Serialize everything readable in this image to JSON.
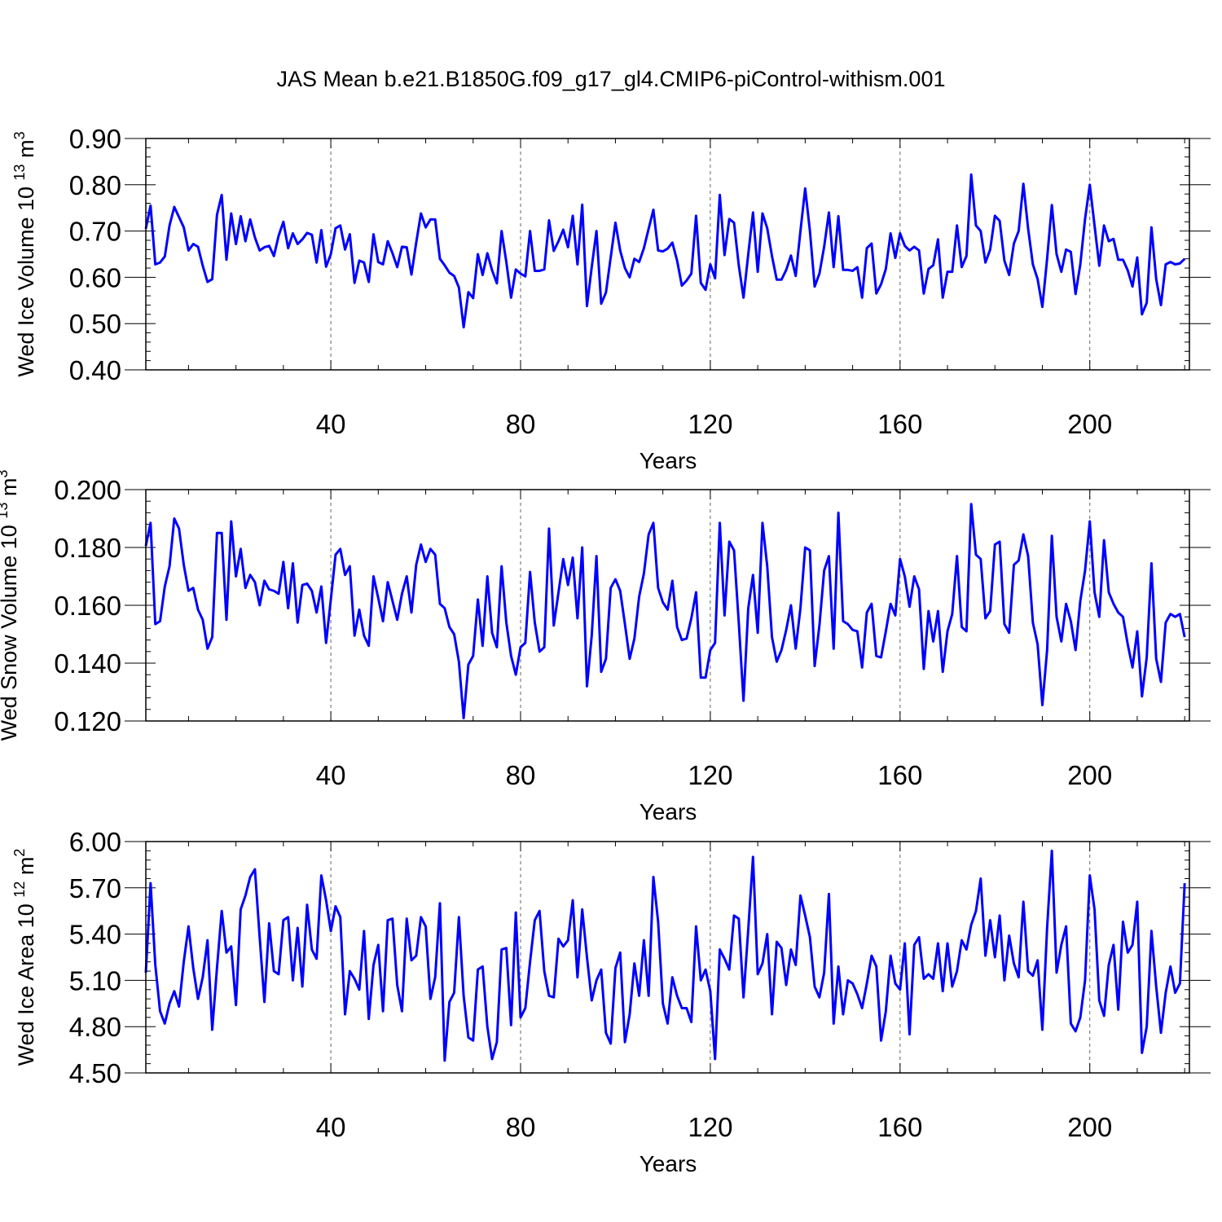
{
  "figure_title": "JAS Mean b.e21.B1850G.f09_g17_gl4.CMIP6-piControl-withism.001",
  "chart_data": [
    {
      "type": "line",
      "ylabel": "Wed Ice Volume 10",
      "ylabel_exp": "13",
      "ylabel_unit": "m",
      "ylabel_unit_exp": "3",
      "xlabel": "Years",
      "xlim": [
        1,
        221
      ],
      "ylim": [
        0.4,
        0.9
      ],
      "yticks": [
        0.4,
        0.5,
        0.6,
        0.7,
        0.8,
        0.9
      ],
      "ytick_labels": [
        "0.40",
        "0.50",
        "0.60",
        "0.70",
        "0.80",
        "0.90"
      ],
      "xticks": [
        40,
        80,
        120,
        160,
        200
      ],
      "xtick_labels": [
        "40",
        "80",
        "120",
        "160",
        "200"
      ],
      "grid": "dashed vertical at major x ticks",
      "line_color": "#0000ff",
      "x_start": 1,
      "values": [
        0.705,
        0.755,
        0.628,
        0.632,
        0.645,
        0.712,
        0.752,
        0.73,
        0.708,
        0.658,
        0.672,
        0.666,
        0.625,
        0.59,
        0.596,
        0.735,
        0.778,
        0.638,
        0.738,
        0.672,
        0.732,
        0.678,
        0.725,
        0.686,
        0.658,
        0.665,
        0.668,
        0.646,
        0.69,
        0.72,
        0.663,
        0.695,
        0.672,
        0.682,
        0.696,
        0.692,
        0.632,
        0.702,
        0.623,
        0.65,
        0.706,
        0.712,
        0.66,
        0.693,
        0.588,
        0.636,
        0.632,
        0.59,
        0.693,
        0.633,
        0.628,
        0.678,
        0.652,
        0.622,
        0.666,
        0.665,
        0.606,
        0.675,
        0.738,
        0.708,
        0.725,
        0.725,
        0.64,
        0.626,
        0.61,
        0.603,
        0.578,
        0.492,
        0.568,
        0.555,
        0.65,
        0.605,
        0.652,
        0.615,
        0.587,
        0.7,
        0.633,
        0.556,
        0.617,
        0.608,
        0.602,
        0.7,
        0.614,
        0.614,
        0.617,
        0.723,
        0.657,
        0.678,
        0.703,
        0.665,
        0.733,
        0.628,
        0.757,
        0.538,
        0.622,
        0.7,
        0.543,
        0.567,
        0.643,
        0.718,
        0.658,
        0.62,
        0.6,
        0.64,
        0.633,
        0.663,
        0.705,
        0.746,
        0.658,
        0.656,
        0.662,
        0.675,
        0.636,
        0.582,
        0.593,
        0.608,
        0.733,
        0.588,
        0.573,
        0.628,
        0.598,
        0.778,
        0.648,
        0.726,
        0.718,
        0.626,
        0.556,
        0.65,
        0.74,
        0.612,
        0.738,
        0.706,
        0.646,
        0.595,
        0.595,
        0.616,
        0.647,
        0.603,
        0.7,
        0.792,
        0.7,
        0.58,
        0.608,
        0.666,
        0.74,
        0.622,
        0.732,
        0.616,
        0.616,
        0.614,
        0.622,
        0.556,
        0.663,
        0.673,
        0.565,
        0.585,
        0.618,
        0.695,
        0.642,
        0.695,
        0.668,
        0.658,
        0.666,
        0.658,
        0.565,
        0.618,
        0.626,
        0.682,
        0.556,
        0.612,
        0.612,
        0.712,
        0.622,
        0.646,
        0.822,
        0.712,
        0.7,
        0.632,
        0.66,
        0.733,
        0.722,
        0.636,
        0.605,
        0.673,
        0.7,
        0.802,
        0.705,
        0.628,
        0.596,
        0.536,
        0.64,
        0.756,
        0.65,
        0.612,
        0.66,
        0.655,
        0.564,
        0.628,
        0.726,
        0.8,
        0.712,
        0.625,
        0.712,
        0.678,
        0.683,
        0.638,
        0.638,
        0.615,
        0.58,
        0.643,
        0.52,
        0.545,
        0.708,
        0.596,
        0.54,
        0.628,
        0.633,
        0.628,
        0.63,
        0.64
      ]
    },
    {
      "type": "line",
      "ylabel": "Wed Snow Volume 10",
      "ylabel_exp": "13",
      "ylabel_unit": "m",
      "ylabel_unit_exp": "3",
      "xlabel": "Years",
      "xlim": [
        1,
        221
      ],
      "ylim": [
        0.12,
        0.2
      ],
      "yticks": [
        0.12,
        0.14,
        0.16,
        0.18,
        0.2
      ],
      "ytick_labels": [
        "0.120",
        "0.140",
        "0.160",
        "0.180",
        "0.200"
      ],
      "xticks": [
        40,
        80,
        120,
        160,
        200
      ],
      "xtick_labels": [
        "40",
        "80",
        "120",
        "160",
        "200"
      ],
      "grid": "dashed vertical at major x ticks",
      "line_color": "#0000ff",
      "x_start": 1,
      "values": [
        0.1805,
        0.1885,
        0.1535,
        0.1545,
        0.1665,
        0.1735,
        0.19,
        0.1865,
        0.174,
        0.165,
        0.166,
        0.1585,
        0.155,
        0.145,
        0.149,
        0.185,
        0.185,
        0.155,
        0.189,
        0.17,
        0.1795,
        0.166,
        0.1705,
        0.168,
        0.16,
        0.1685,
        0.1655,
        0.165,
        0.164,
        0.175,
        0.159,
        0.1745,
        0.154,
        0.167,
        0.1675,
        0.165,
        0.1575,
        0.1665,
        0.147,
        0.162,
        0.1775,
        0.1795,
        0.1705,
        0.1735,
        0.1495,
        0.1585,
        0.1495,
        0.146,
        0.17,
        0.1625,
        0.1545,
        0.168,
        0.1615,
        0.155,
        0.164,
        0.17,
        0.1575,
        0.174,
        0.181,
        0.175,
        0.1795,
        0.1775,
        0.1605,
        0.159,
        0.1525,
        0.15,
        0.1405,
        0.121,
        0.1395,
        0.1425,
        0.162,
        0.146,
        0.17,
        0.1505,
        0.1455,
        0.1735,
        0.154,
        0.1425,
        0.136,
        0.1455,
        0.147,
        0.1715,
        0.154,
        0.144,
        0.1455,
        0.1865,
        0.153,
        0.1645,
        0.176,
        0.167,
        0.1765,
        0.1555,
        0.18,
        0.132,
        0.1495,
        0.177,
        0.137,
        0.1415,
        0.166,
        0.169,
        0.165,
        0.1535,
        0.1415,
        0.1485,
        0.163,
        0.171,
        0.1845,
        0.1885,
        0.166,
        0.161,
        0.1585,
        0.1685,
        0.1525,
        0.148,
        0.1485,
        0.1555,
        0.1645,
        0.135,
        0.135,
        0.1445,
        0.147,
        0.1885,
        0.1565,
        0.182,
        0.179,
        0.154,
        0.127,
        0.159,
        0.1705,
        0.1505,
        0.1885,
        0.1735,
        0.149,
        0.1405,
        0.1445,
        0.1515,
        0.16,
        0.145,
        0.159,
        0.18,
        0.179,
        0.139,
        0.153,
        0.172,
        0.177,
        0.145,
        0.192,
        0.1545,
        0.1535,
        0.1515,
        0.151,
        0.1385,
        0.1575,
        0.1605,
        0.1425,
        0.142,
        0.151,
        0.1605,
        0.1565,
        0.176,
        0.17,
        0.1595,
        0.17,
        0.1655,
        0.138,
        0.158,
        0.1475,
        0.158,
        0.137,
        0.151,
        0.157,
        0.177,
        0.1525,
        0.151,
        0.195,
        0.1775,
        0.176,
        0.1555,
        0.158,
        0.181,
        0.182,
        0.1535,
        0.1505,
        0.174,
        0.1755,
        0.1845,
        0.177,
        0.154,
        0.1465,
        0.1255,
        0.1445,
        0.184,
        0.156,
        0.1475,
        0.1605,
        0.1545,
        0.1445,
        0.1615,
        0.172,
        0.189,
        0.1645,
        0.156,
        0.1825,
        0.1645,
        0.1605,
        0.1575,
        0.156,
        0.1465,
        0.1385,
        0.151,
        0.1285,
        0.142,
        0.1745,
        0.1415,
        0.1335,
        0.154,
        0.157,
        0.156,
        0.157,
        0.149
      ]
    },
    {
      "type": "line",
      "ylabel": "Wed Ice Area 10",
      "ylabel_exp": "12",
      "ylabel_unit": "m",
      "ylabel_unit_exp": "2",
      "xlabel": "Years",
      "xlim": [
        1,
        221
      ],
      "ylim": [
        4.5,
        6.0
      ],
      "yticks": [
        4.5,
        4.8,
        5.1,
        5.4,
        5.7,
        6.0
      ],
      "ytick_labels": [
        "4.50",
        "4.80",
        "5.10",
        "5.40",
        "5.70",
        "6.00"
      ],
      "xticks": [
        40,
        80,
        120,
        160,
        200
      ],
      "xtick_labels": [
        "40",
        "80",
        "120",
        "160",
        "200"
      ],
      "grid": "dashed vertical at major x ticks",
      "line_color": "#0000ff",
      "x_start": 1,
      "values": [
        5.15,
        5.73,
        5.2,
        4.9,
        4.82,
        4.95,
        5.03,
        4.93,
        5.22,
        5.45,
        5.18,
        4.98,
        5.12,
        5.36,
        4.78,
        5.18,
        5.55,
        5.28,
        5.32,
        4.94,
        5.56,
        5.65,
        5.77,
        5.82,
        5.38,
        4.96,
        5.47,
        5.16,
        5.14,
        5.49,
        5.51,
        5.1,
        5.44,
        5.06,
        5.59,
        5.3,
        5.24,
        5.78,
        5.62,
        5.42,
        5.58,
        5.51,
        4.88,
        5.16,
        5.11,
        5.04,
        5.42,
        4.85,
        5.2,
        5.33,
        4.9,
        5.49,
        5.5,
        5.07,
        4.9,
        5.5,
        5.23,
        5.26,
        5.51,
        5.45,
        4.98,
        5.12,
        5.6,
        4.58,
        4.96,
        5.02,
        5.51,
        5.0,
        4.73,
        4.71,
        5.17,
        5.19,
        4.8,
        4.59,
        4.7,
        5.3,
        5.31,
        4.81,
        5.54,
        4.86,
        4.92,
        5.22,
        5.49,
        5.55,
        5.16,
        5.0,
        4.99,
        5.37,
        5.32,
        5.36,
        5.62,
        5.12,
        5.56,
        5.25,
        4.97,
        5.1,
        5.17,
        4.76,
        4.69,
        5.18,
        5.28,
        4.7,
        4.88,
        5.21,
        5.0,
        5.36,
        5.0,
        5.77,
        5.48,
        4.95,
        4.82,
        5.12,
        5.0,
        4.92,
        4.92,
        4.83,
        5.45,
        5.1,
        5.17,
        5.03,
        4.59,
        5.3,
        5.24,
        5.17,
        5.52,
        5.5,
        4.99,
        5.43,
        5.9,
        5.14,
        5.21,
        5.4,
        4.88,
        5.35,
        5.31,
        5.07,
        5.3,
        5.2,
        5.65,
        5.52,
        5.38,
        5.06,
        4.99,
        5.15,
        5.66,
        4.82,
        5.19,
        4.88,
        5.1,
        5.08,
        5.01,
        4.92,
        5.08,
        5.26,
        5.19,
        4.71,
        4.9,
        5.26,
        5.08,
        5.04,
        5.34,
        4.75,
        5.33,
        5.38,
        5.11,
        5.14,
        5.11,
        5.34,
        5.03,
        5.34,
        5.06,
        5.16,
        5.36,
        5.3,
        5.46,
        5.55,
        5.76,
        5.26,
        5.49,
        5.25,
        5.52,
        5.1,
        5.39,
        5.21,
        5.12,
        5.61,
        5.16,
        5.13,
        5.23,
        4.78,
        5.44,
        5.94,
        5.15,
        5.33,
        5.45,
        4.82,
        4.77,
        4.86,
        5.1,
        5.78,
        5.56,
        4.97,
        4.87,
        5.2,
        5.33,
        4.91,
        5.48,
        5.28,
        5.33,
        5.61,
        4.63,
        4.8,
        5.42,
        5.06,
        4.76,
        5.02,
        5.19,
        5.02,
        5.08,
        5.73
      ]
    }
  ]
}
